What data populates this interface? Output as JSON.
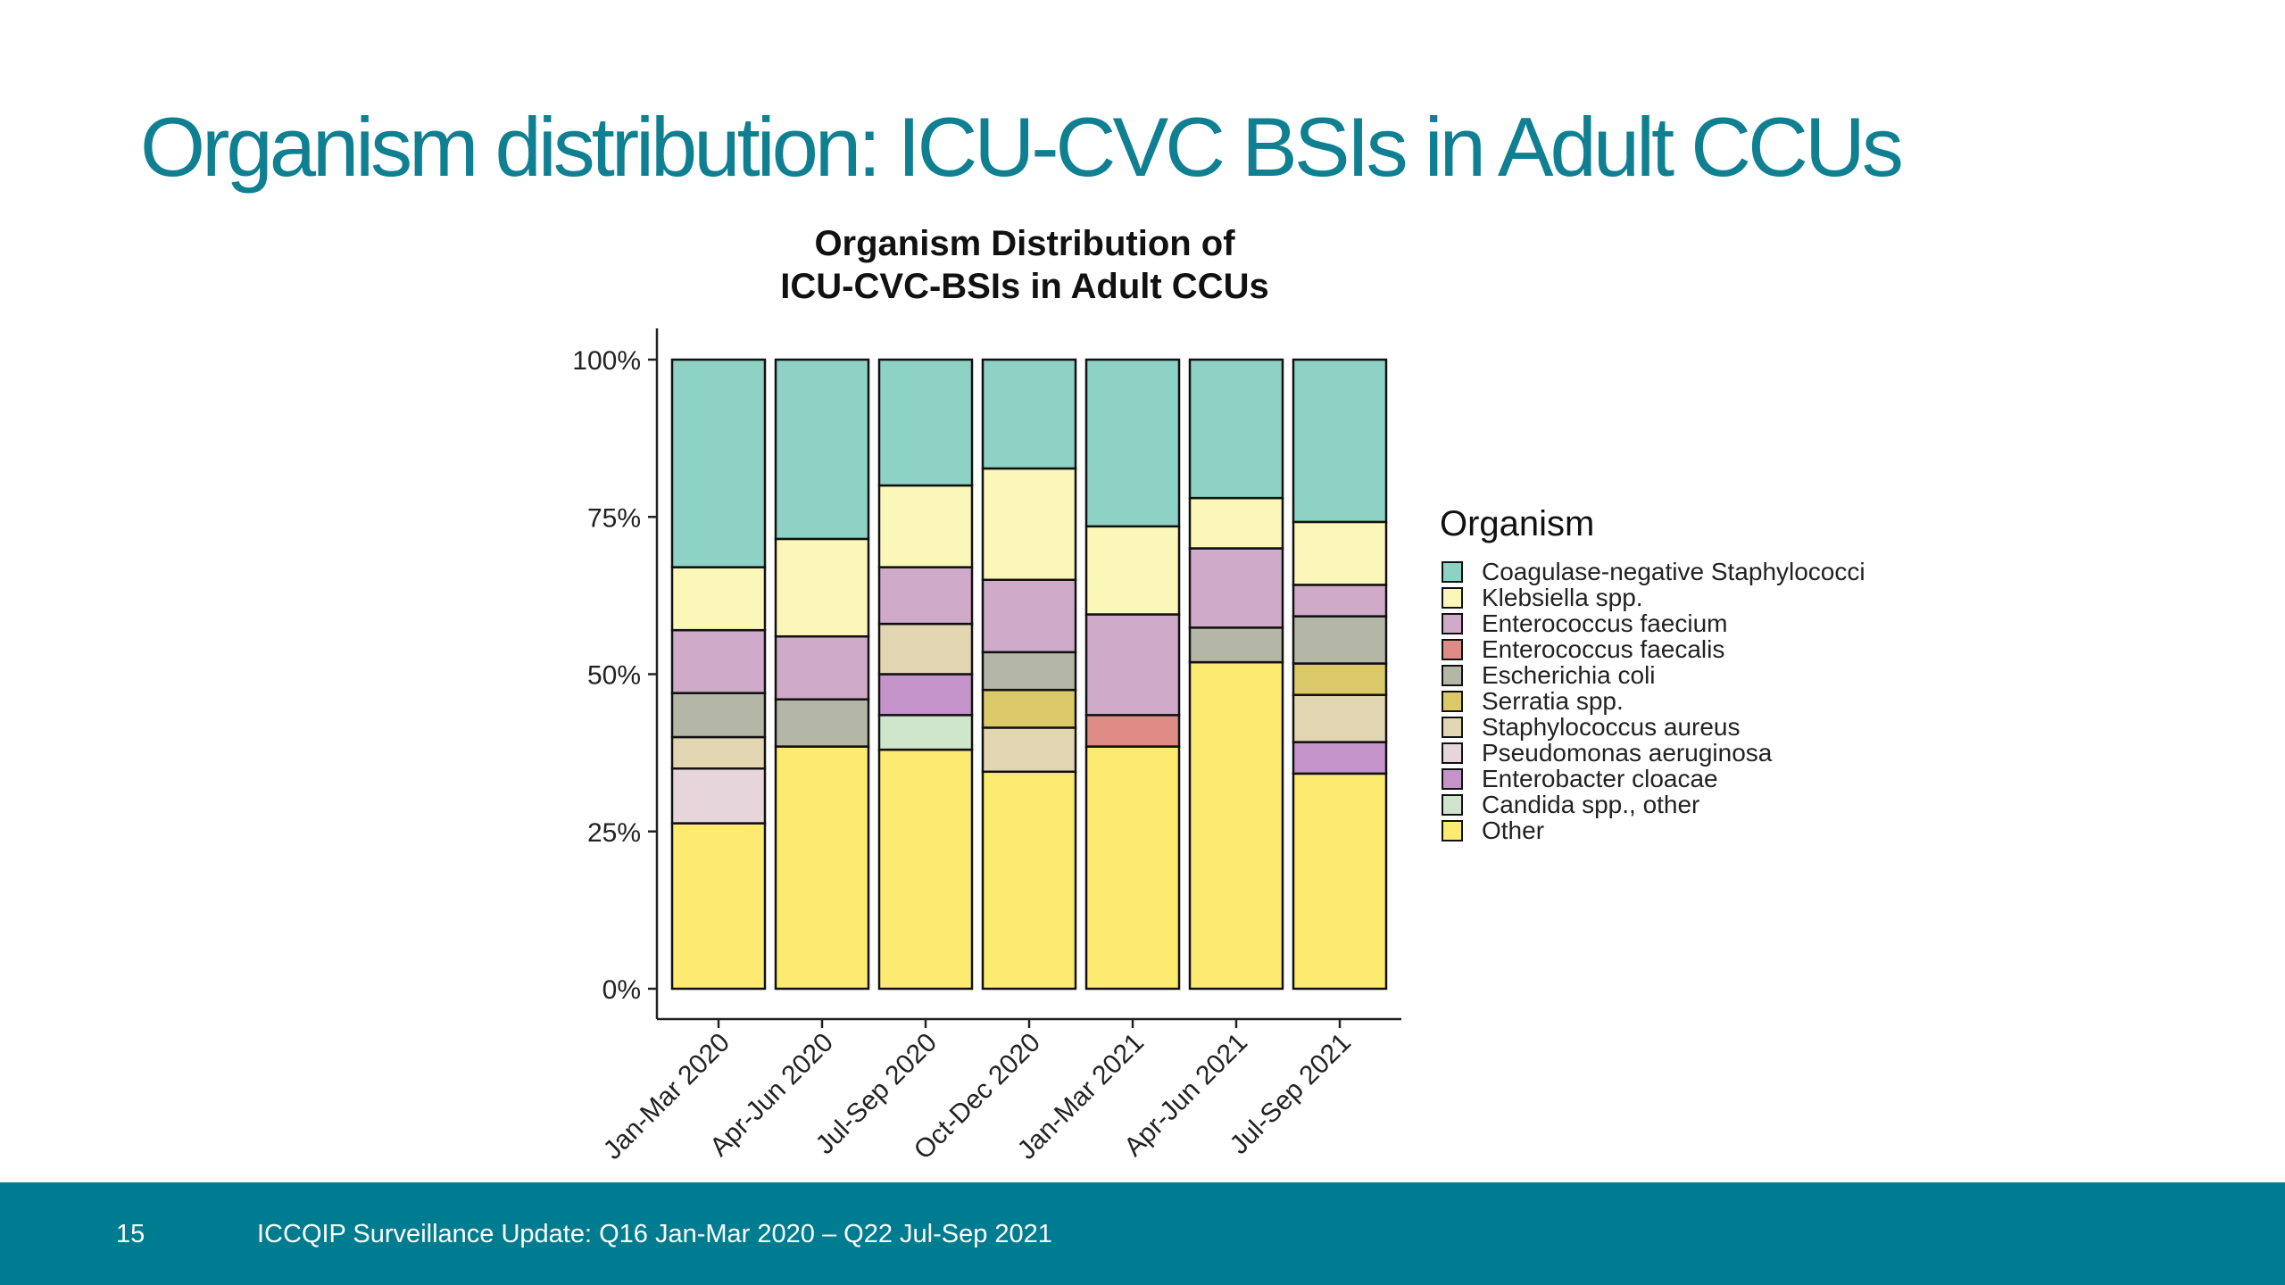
{
  "slide": {
    "title": "Organism distribution: ICU-CVC BSIs in Adult CCUs",
    "page_number": "15",
    "footer_text": "ICCQIP Surveillance Update: Q16 Jan-Mar 2020 – Q22 Jul-Sep 2021",
    "title_color": "#0f7f92",
    "footer_color": "#007c90"
  },
  "chart_data": {
    "type": "bar",
    "stacked": true,
    "normalized": true,
    "title": [
      "Organism Distribution of",
      "ICU-CVC-BSIs in Adult CCUs"
    ],
    "legend_title": "Organism",
    "legend_position": "right",
    "categories": [
      "Jan-Mar 2020",
      "Apr-Jun 2020",
      "Jul-Sep 2020",
      "Oct-Dec 2020",
      "Jan-Mar 2021",
      "Apr-Jun 2021",
      "Jul-Sep 2021"
    ],
    "y_ticks": [
      "0%",
      "25%",
      "50%",
      "75%",
      "100%"
    ],
    "ylim": [
      0,
      100
    ],
    "grid": false,
    "series": [
      {
        "name": "Other",
        "color": "#fdea70",
        "values": [
          26.3,
          38.5,
          38.0,
          34.5,
          38.5,
          51.9,
          34.2
        ]
      },
      {
        "name": "Candida spp., other",
        "color": "#cfe6cd",
        "values": [
          0,
          0,
          5.5,
          0,
          0,
          0,
          0
        ]
      },
      {
        "name": "Enterobacter cloacae",
        "color": "#c393c9",
        "values": [
          0,
          0,
          6.5,
          0,
          0,
          0,
          5.0
        ]
      },
      {
        "name": "Pseudomonas aeruginosa",
        "color": "#e6d5da",
        "values": [
          8.7,
          0,
          0,
          0,
          0,
          0,
          0
        ]
      },
      {
        "name": "Staphylococcus aureus",
        "color": "#e2d5b1",
        "values": [
          5.0,
          0,
          8.0,
          7.0,
          0,
          0,
          7.5
        ]
      },
      {
        "name": "Serratia spp.",
        "color": "#dbc868",
        "values": [
          0,
          0,
          0,
          6.0,
          0,
          0,
          5.0
        ]
      },
      {
        "name": "Escherichia coli",
        "color": "#b4b7a6",
        "values": [
          7.0,
          7.5,
          0,
          6.0,
          0,
          5.5,
          7.5
        ]
      },
      {
        "name": "Enterococcus faecalis",
        "color": "#df8c87",
        "values": [
          0,
          0,
          0,
          0,
          5.0,
          0,
          0
        ]
      },
      {
        "name": "Enterococcus faecium",
        "color": "#cfabc9",
        "values": [
          10.0,
          10.0,
          9.0,
          11.5,
          16.0,
          12.6,
          5.0
        ]
      },
      {
        "name": "Klebsiella spp.",
        "color": "#fbf7b9",
        "values": [
          10.0,
          15.5,
          13.0,
          17.7,
          14.0,
          8.0,
          10.0
        ]
      },
      {
        "name": "Coagulase-negative Staphylococci",
        "color": "#8ed2c6",
        "values": [
          33.0,
          28.5,
          20.0,
          17.3,
          26.5,
          22.0,
          25.8
        ]
      }
    ],
    "legend_order": [
      "Coagulase-negative Staphylococci",
      "Klebsiella spp.",
      "Enterococcus faecium",
      "Enterococcus faecalis",
      "Escherichia coli",
      "Serratia spp.",
      "Staphylococcus aureus",
      "Pseudomonas aeruginosa",
      "Enterobacter cloacae",
      "Candida spp., other",
      "Other"
    ]
  }
}
